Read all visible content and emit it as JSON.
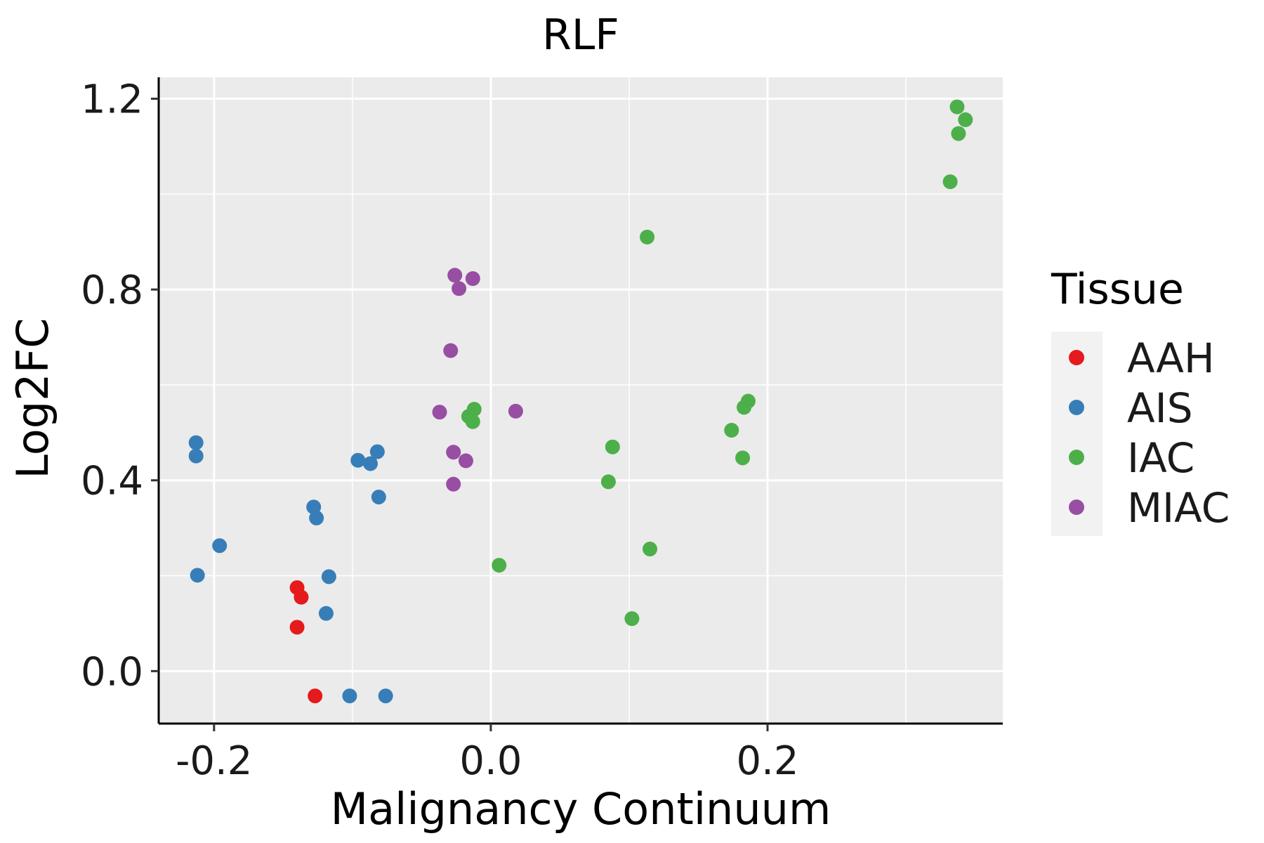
{
  "chart_data": {
    "type": "scatter",
    "title": "RLF",
    "xlabel": "Malignancy Continuum",
    "ylabel": "Log2FC",
    "xlim": [
      -0.24,
      0.37
    ],
    "ylim": [
      -0.11,
      1.245
    ],
    "x_ticks": [
      -0.2,
      0.0,
      0.2
    ],
    "x_tick_labels": [
      "-0.2",
      "0.0",
      "0.2"
    ],
    "x_minor_ticks": [
      -0.1,
      0.1,
      0.3
    ],
    "y_ticks": [
      0.0,
      0.4,
      0.8,
      1.2
    ],
    "y_tick_labels": [
      "0.0",
      "0.4",
      "0.8",
      "1.2"
    ],
    "y_minor_ticks": [
      0.2,
      0.6,
      1.0
    ],
    "grid": true,
    "legend": {
      "title": "Tissue",
      "position": "right"
    },
    "series": [
      {
        "name": "AAH",
        "color": "#E41A1C",
        "points": [
          {
            "x": -0.14,
            "y": 0.175
          },
          {
            "x": -0.137,
            "y": 0.155
          },
          {
            "x": -0.14,
            "y": 0.092
          },
          {
            "x": -0.127,
            "y": -0.052
          }
        ]
      },
      {
        "name": "AIS",
        "color": "#377EB8",
        "points": [
          {
            "x": -0.213,
            "y": 0.479
          },
          {
            "x": -0.213,
            "y": 0.451
          },
          {
            "x": -0.196,
            "y": 0.263
          },
          {
            "x": -0.212,
            "y": 0.201
          },
          {
            "x": -0.128,
            "y": 0.344
          },
          {
            "x": -0.126,
            "y": 0.321
          },
          {
            "x": -0.117,
            "y": 0.198
          },
          {
            "x": -0.119,
            "y": 0.121
          },
          {
            "x": -0.096,
            "y": 0.442
          },
          {
            "x": -0.087,
            "y": 0.435
          },
          {
            "x": -0.082,
            "y": 0.46
          },
          {
            "x": -0.081,
            "y": 0.365
          },
          {
            "x": -0.102,
            "y": -0.052
          },
          {
            "x": -0.076,
            "y": -0.052
          }
        ]
      },
      {
        "name": "IAC",
        "color": "#4DAF4A",
        "points": [
          {
            "x": 0.337,
            "y": 1.183
          },
          {
            "x": 0.343,
            "y": 1.156
          },
          {
            "x": 0.338,
            "y": 1.127
          },
          {
            "x": 0.332,
            "y": 1.026
          },
          {
            "x": 0.113,
            "y": 0.91
          },
          {
            "x": 0.186,
            "y": 0.566
          },
          {
            "x": 0.183,
            "y": 0.553
          },
          {
            "x": 0.174,
            "y": 0.505
          },
          {
            "x": 0.182,
            "y": 0.447
          },
          {
            "x": -0.012,
            "y": 0.549
          },
          {
            "x": -0.016,
            "y": 0.534
          },
          {
            "x": -0.013,
            "y": 0.523
          },
          {
            "x": 0.088,
            "y": 0.47
          },
          {
            "x": 0.085,
            "y": 0.397
          },
          {
            "x": 0.115,
            "y": 0.256
          },
          {
            "x": 0.006,
            "y": 0.222
          },
          {
            "x": 0.102,
            "y": 0.11
          }
        ]
      },
      {
        "name": "MIAC",
        "color": "#984EA3",
        "points": [
          {
            "x": -0.026,
            "y": 0.83
          },
          {
            "x": -0.013,
            "y": 0.823
          },
          {
            "x": -0.023,
            "y": 0.802
          },
          {
            "x": -0.029,
            "y": 0.672
          },
          {
            "x": -0.037,
            "y": 0.543
          },
          {
            "x": 0.018,
            "y": 0.545
          },
          {
            "x": -0.027,
            "y": 0.459
          },
          {
            "x": -0.018,
            "y": 0.441
          },
          {
            "x": -0.027,
            "y": 0.392
          }
        ]
      }
    ]
  }
}
